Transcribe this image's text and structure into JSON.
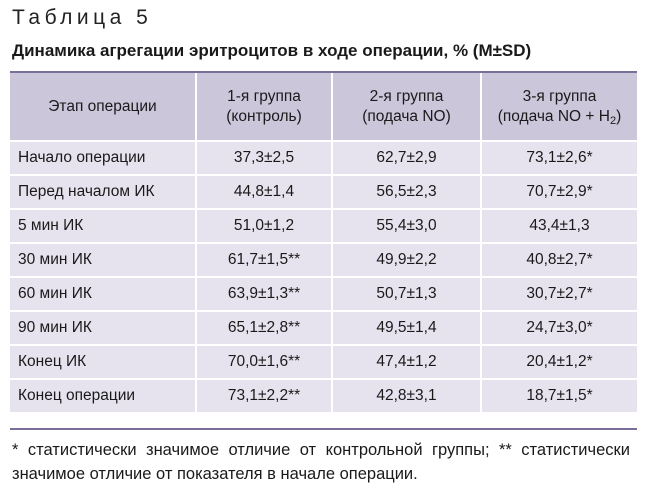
{
  "table_label": "Таблица 5",
  "title": "Динамика агрегации эритроцитов в ходе операции, % (M±SD)",
  "header": {
    "stage": "Этап операции",
    "group1_line1": "1-я группа",
    "group1_line2": "(контроль)",
    "group2_line1": "2-я группа",
    "group2_line2": "(подача NO)",
    "group3_line1": "3-я группа",
    "group3_line2_pre": "(подача NO + H",
    "group3_line2_sub": "2",
    "group3_line2_post": ")"
  },
  "rows": [
    {
      "stage": "Начало операции",
      "g1": "37,3±2,5",
      "g2": "62,7±2,9",
      "g3": "73,1±2,6*"
    },
    {
      "stage": "Перед началом ИК",
      "g1": "44,8±1,4",
      "g2": "56,5±2,3",
      "g3": "70,7±2,9*"
    },
    {
      "stage": "5 мин ИК",
      "g1": "51,0±1,2",
      "g2": "55,4±3,0",
      "g3": "43,4±1,3"
    },
    {
      "stage": "30 мин ИК",
      "g1": "61,7±1,5**",
      "g2": "49,9±2,2",
      "g3": "40,8±2,7*"
    },
    {
      "stage": "60 мин ИК",
      "g1": "63,9±1,3**",
      "g2": "50,7±1,3",
      "g3": "30,7±2,7*"
    },
    {
      "stage": "90 мин ИК",
      "g1": "65,1±2,8**",
      "g2": "49,5±1,4",
      "g3": "24,7±3,0*"
    },
    {
      "stage": "Конец ИК",
      "g1": "70,0±1,6**",
      "g2": "47,4±1,2",
      "g3": "20,4±1,2*"
    },
    {
      "stage": "Конец операции",
      "g1": "73,1±2,2**",
      "g2": "42,8±3,1",
      "g3": "18,7±1,5*"
    }
  ],
  "footnote": "* статистически значимое отличие от контрольной группы; ** статистически значимое отличие от показателя в начале операции."
}
